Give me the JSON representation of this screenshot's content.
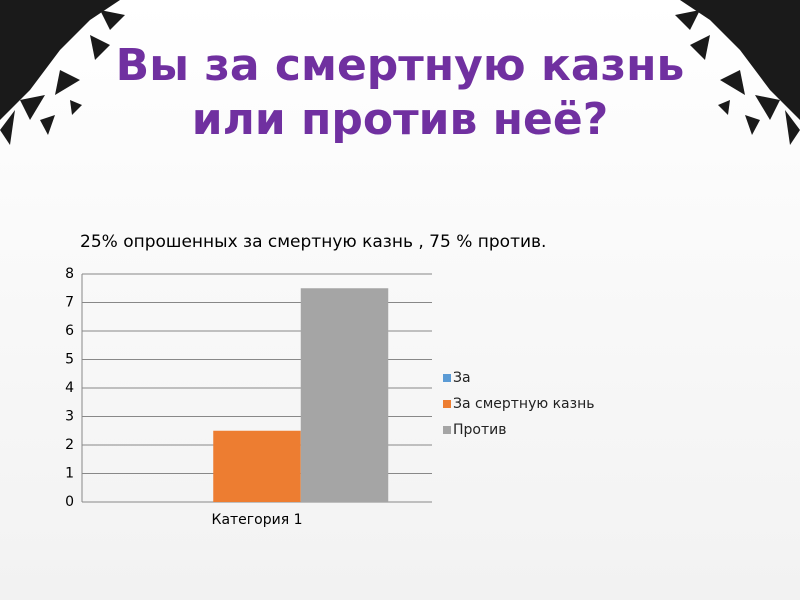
{
  "chart_data": {
    "type": "bar",
    "title_lines": [
      "Вы за смертную казнь",
      "или против неё?"
    ],
    "subtitle": "25% опрошенных за смертную казнь , 75 % против.",
    "categories": [
      "Категория 1"
    ],
    "series": [
      {
        "name": "За",
        "color": "#5b9bd5",
        "values": [
          0
        ]
      },
      {
        "name": "За смертную казнь",
        "color": "#ed7d31",
        "values": [
          2.5
        ]
      },
      {
        "name": "Против",
        "color": "#a5a5a5",
        "values": [
          7.5
        ]
      }
    ],
    "ylim": [
      0,
      8
    ],
    "yticks": [
      0,
      1,
      2,
      3,
      4,
      5,
      6,
      7,
      8
    ],
    "grid": true,
    "legend": "right"
  }
}
